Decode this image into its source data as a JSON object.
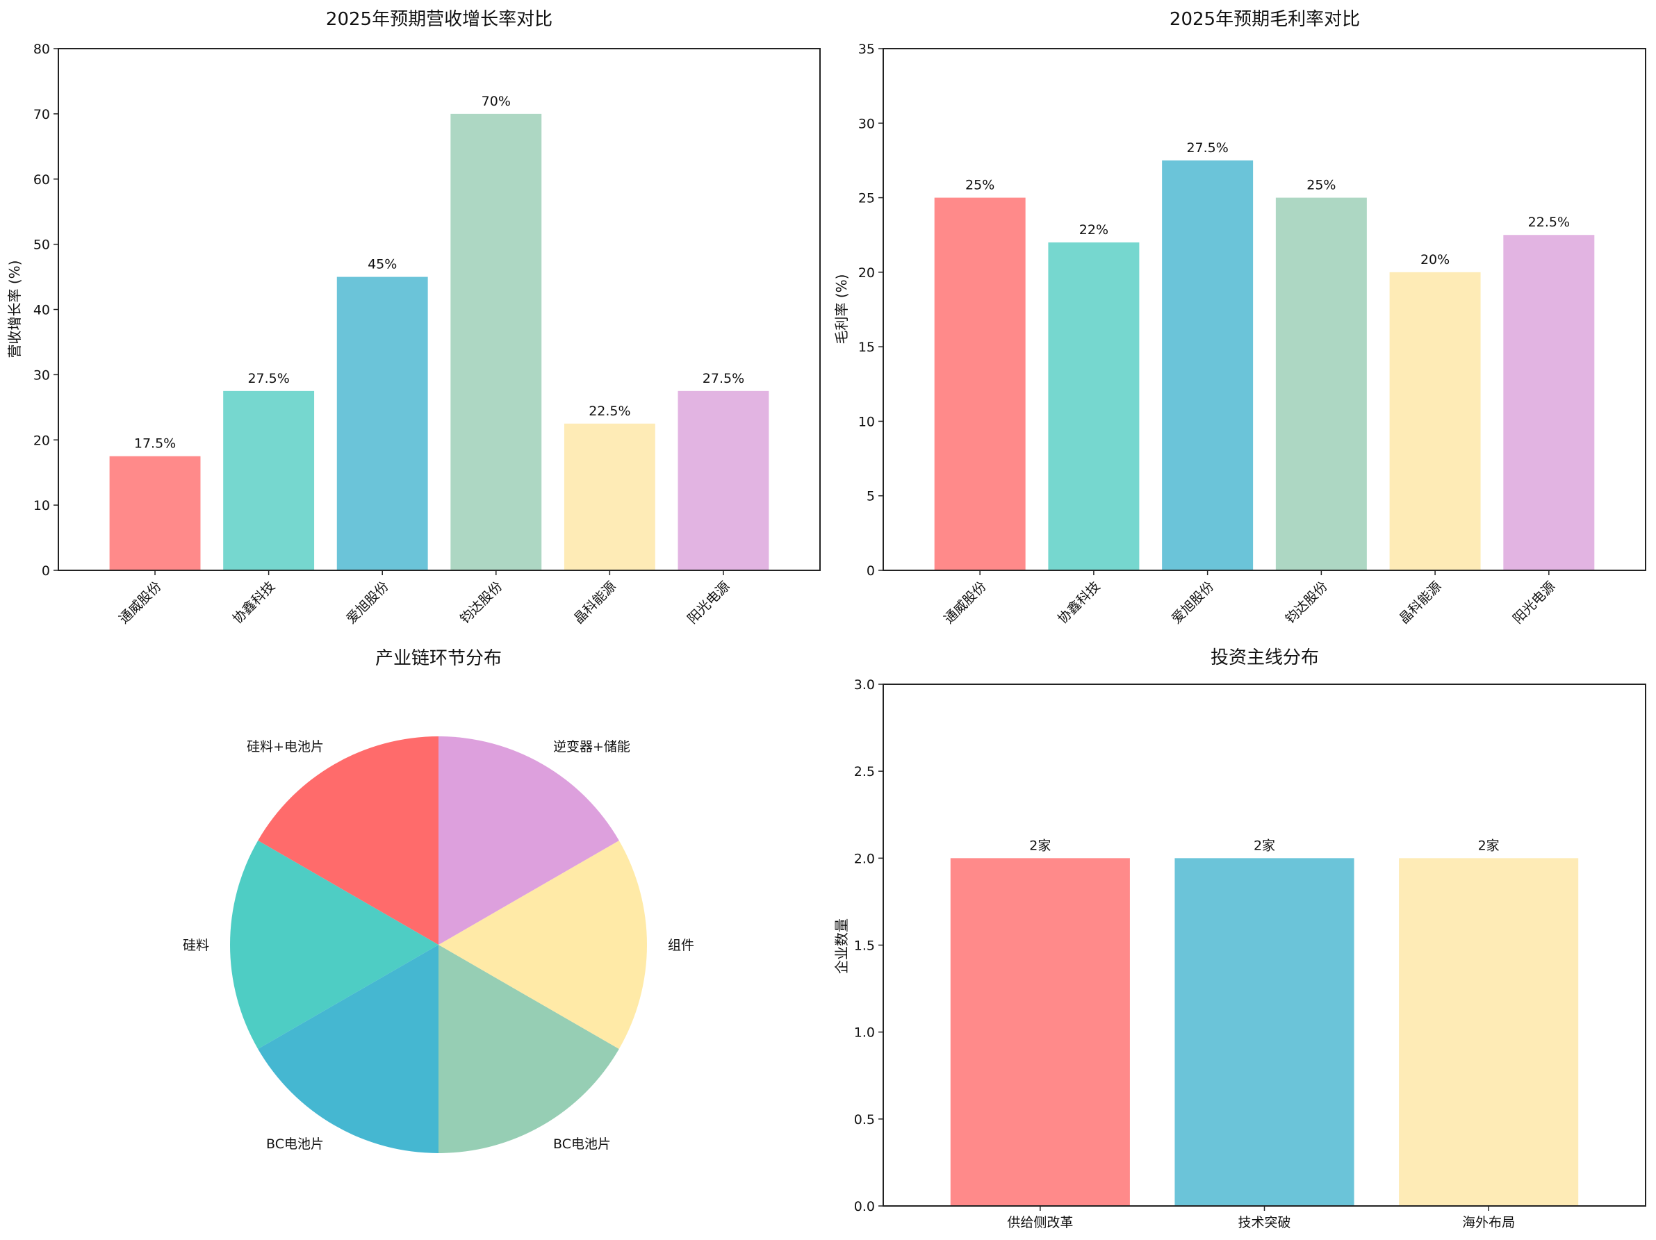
{
  "chart_data": [
    {
      "type": "bar",
      "title": "2025年预期营收增长率对比",
      "xlabel": "",
      "ylabel": "营收增长率 (%)",
      "categories": [
        "通威股份",
        "协鑫科技",
        "爱旭股份",
        "钧达股份",
        "晶科能源",
        "阳光电源"
      ],
      "values": [
        17.5,
        27.5,
        45,
        70,
        22.5,
        27.5
      ],
      "data_labels": [
        "17.5%",
        "27.5%",
        "45%",
        "70%",
        "22.5%",
        "27.5%"
      ],
      "colors": [
        "#FF8A8A",
        "#76D7CF",
        "#6BC4D9",
        "#ADD7C3",
        "#FEEBB6",
        "#E2B4E2"
      ],
      "ylim": [
        0,
        80
      ],
      "yticks": [
        0,
        10,
        20,
        30,
        40,
        50,
        60,
        70,
        80
      ],
      "ytick_labels": [
        "0",
        "10",
        "20",
        "30",
        "40",
        "50",
        "60",
        "70",
        "80"
      ],
      "xtick_rotation": "45°",
      "grid": false
    },
    {
      "type": "bar",
      "title": "2025年预期毛利率对比",
      "xlabel": "",
      "ylabel": "毛利率 (%)",
      "categories": [
        "通威股份",
        "协鑫科技",
        "爱旭股份",
        "钧达股份",
        "晶科能源",
        "阳光电源"
      ],
      "values": [
        25,
        22,
        27.5,
        25,
        20,
        22.5
      ],
      "data_labels": [
        "25%",
        "22%",
        "27.5%",
        "25%",
        "20%",
        "22.5%"
      ],
      "colors": [
        "#FF8A8A",
        "#76D7CF",
        "#6BC4D9",
        "#ADD7C3",
        "#FEEBB6",
        "#E2B4E2"
      ],
      "ylim": [
        0,
        35
      ],
      "yticks": [
        0,
        5,
        10,
        15,
        20,
        25,
        30,
        35
      ],
      "ytick_labels": [
        "0",
        "5",
        "10",
        "15",
        "20",
        "25",
        "30",
        "35"
      ],
      "xtick_rotation": "45°",
      "grid": false
    },
    {
      "type": "pie",
      "title": "产业链环节分布",
      "labels": [
        "硅料+电池片",
        "硅料",
        "BC电池片",
        "BC电池片",
        "组件",
        "逆变器+储能"
      ],
      "values": [
        1,
        1,
        1,
        1,
        1,
        1
      ],
      "colors": [
        "#FF6B6B",
        "#4ECDC4",
        "#45B7D1",
        "#96CEB4",
        "#FFEAA7",
        "#DDA0DD"
      ],
      "start_angle_deg": 90,
      "direction": "counterclockwise"
    },
    {
      "type": "bar",
      "title": "投资主线分布",
      "xlabel": "",
      "ylabel": "企业数量",
      "categories": [
        "供给侧改革",
        "技术突破",
        "海外布局"
      ],
      "values": [
        2,
        2,
        2
      ],
      "data_labels": [
        "2家",
        "2家",
        "2家"
      ],
      "colors": [
        "#FF8A8A",
        "#6BC4D9",
        "#FEEBB6"
      ],
      "ylim": [
        0,
        3.0
      ],
      "yticks": [
        0,
        0.5,
        1.0,
        1.5,
        2.0,
        2.5,
        3.0
      ],
      "ytick_labels": [
        "0.0",
        "0.5",
        "1.0",
        "1.5",
        "2.0",
        "2.5",
        "3.0"
      ],
      "xtick_rotation": "0°",
      "grid": false
    }
  ]
}
